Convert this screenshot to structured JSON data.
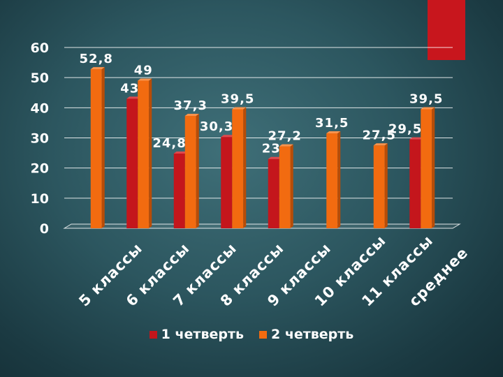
{
  "colors": {
    "series1": "#c4161c",
    "series1_side": "#8a0e12",
    "series1_top": "#e0494d",
    "series2": "#f26b10",
    "series2_side": "#b84c07",
    "series2_top": "#f8934d",
    "accent": "#c8161d",
    "text": "#ffffff"
  },
  "chart_data": {
    "type": "bar",
    "categories": [
      "5 классы",
      "6 классы",
      "7 классы",
      "8 классы",
      "9 классы",
      "10 классы",
      "11 классы",
      "среднее"
    ],
    "series": [
      {
        "name": "1 четверть",
        "values": [
          null,
          43,
          24.8,
          30.3,
          23,
          null,
          null,
          29.5
        ],
        "labels": [
          "",
          "43",
          "24,8",
          "30,3",
          "23",
          "",
          "",
          "29,5"
        ]
      },
      {
        "name": "2 четверть",
        "values": [
          52.8,
          49,
          37.3,
          39.5,
          27.2,
          31.5,
          27.5,
          39.5
        ],
        "labels": [
          "52,8",
          "49",
          "37,3",
          "39,5",
          "27,2",
          "31,5",
          "27,5",
          "39,5"
        ]
      }
    ],
    "yticks": [
      "0",
      "10",
      "20",
      "30",
      "40",
      "50",
      "60"
    ],
    "ylim": [
      0,
      60
    ],
    "grid": true,
    "legend_position": "bottom"
  }
}
